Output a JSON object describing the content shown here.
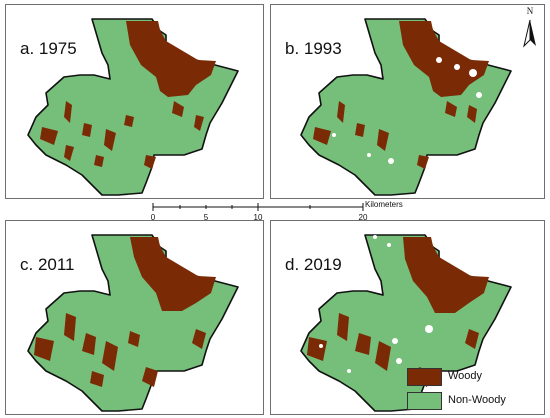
{
  "panels": [
    {
      "label": "a. 1975"
    },
    {
      "label": "b. 1993"
    },
    {
      "label": "c. 2011"
    },
    {
      "label": "d. 2019"
    }
  ],
  "north_arrow": {
    "letter": "N",
    "icon": "north-arrow-icon"
  },
  "scale_bar": {
    "ticks": [
      "0",
      "5",
      "10",
      "20"
    ],
    "unit": "Kilometers"
  },
  "legend": {
    "items": [
      {
        "label": "Woody",
        "color": "#7b2a06"
      },
      {
        "label": "Non-Woody",
        "color": "#76bf7a"
      }
    ]
  },
  "colors": {
    "woody": "#7b2a06",
    "nonwoody": "#76bf7a",
    "outline": "#111111"
  }
}
